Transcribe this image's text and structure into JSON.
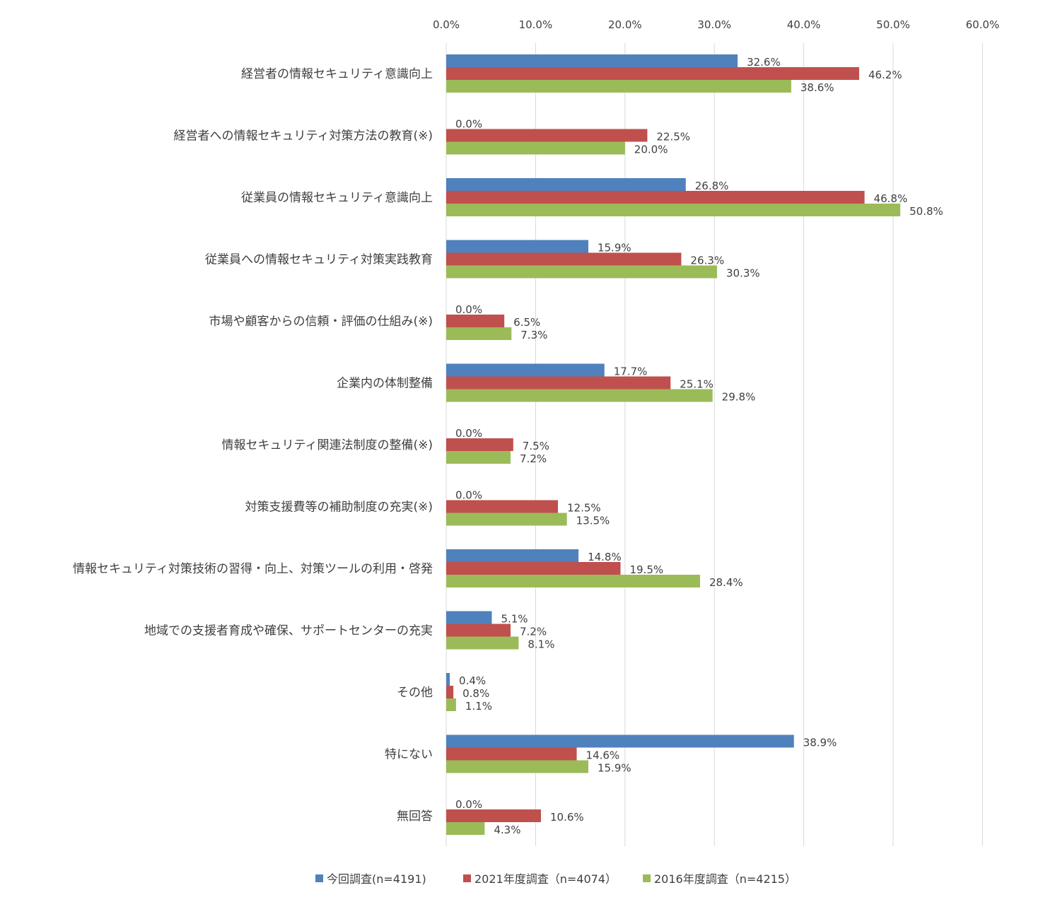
{
  "chart_data": {
    "type": "bar",
    "orientation": "horizontal",
    "title": "",
    "xlabel": "",
    "ylabel": "",
    "xlim": [
      0,
      60
    ],
    "x_ticks": [
      "0.0%",
      "10.0%",
      "20.0%",
      "30.0%",
      "40.0%",
      "50.0%",
      "60.0%"
    ],
    "x_tick_values": [
      0,
      10,
      20,
      30,
      40,
      50,
      60
    ],
    "grid": "vertical",
    "legend_position": "bottom",
    "categories": [
      "経営者の情報セキュリティ意識向上",
      "経営者への情報セキュリティ対策方法の教育(※)",
      "従業員の情報セキュリティ意識向上",
      "従業員への情報セキュリティ対策実践教育",
      "市場や顧客からの信頼・評価の仕組み(※)",
      "企業内の体制整備",
      "情報セキュリティ関連法制度の整備(※)",
      "対策支援費等の補助制度の充実(※)",
      "情報セキュリティ対策技術の習得・向上、対策ツールの利用・啓発",
      "地域での支援者育成や確保、サポートセンターの充実",
      "その他",
      "特にない",
      "無回答"
    ],
    "series": [
      {
        "name": "今回調査(n=4191)",
        "color": "#4f81bd",
        "values": [
          32.6,
          0.0,
          26.8,
          15.9,
          0.0,
          17.7,
          0.0,
          0.0,
          14.8,
          5.1,
          0.4,
          38.9,
          0.0
        ],
        "labels": [
          "32.6%",
          "0.0%",
          "26.8%",
          "15.9%",
          "0.0%",
          "17.7%",
          "0.0%",
          "0.0%",
          "14.8%",
          "5.1%",
          "0.4%",
          "38.9%",
          "0.0%"
        ]
      },
      {
        "name": "2021年度調査（n=4074）",
        "color": "#c0504d",
        "values": [
          46.2,
          22.5,
          46.8,
          26.3,
          6.5,
          25.1,
          7.5,
          12.5,
          19.5,
          7.2,
          0.8,
          14.6,
          10.6
        ],
        "labels": [
          "46.2%",
          "22.5%",
          "46.8%",
          "26.3%",
          "6.5%",
          "25.1%",
          "7.5%",
          "12.5%",
          "19.5%",
          "7.2%",
          "0.8%",
          "14.6%",
          "10.6%"
        ]
      },
      {
        "name": "2016年度調査（n=4215）",
        "color": "#9bbb59",
        "values": [
          38.6,
          20.0,
          50.8,
          30.3,
          7.3,
          29.8,
          7.2,
          13.5,
          28.4,
          8.1,
          1.1,
          15.9,
          4.3
        ],
        "labels": [
          "38.6%",
          "20.0%",
          "50.8%",
          "30.3%",
          "7.3%",
          "29.8%",
          "7.2%",
          "13.5%",
          "28.4%",
          "8.1%",
          "1.1%",
          "15.9%",
          "4.3%"
        ]
      }
    ]
  }
}
